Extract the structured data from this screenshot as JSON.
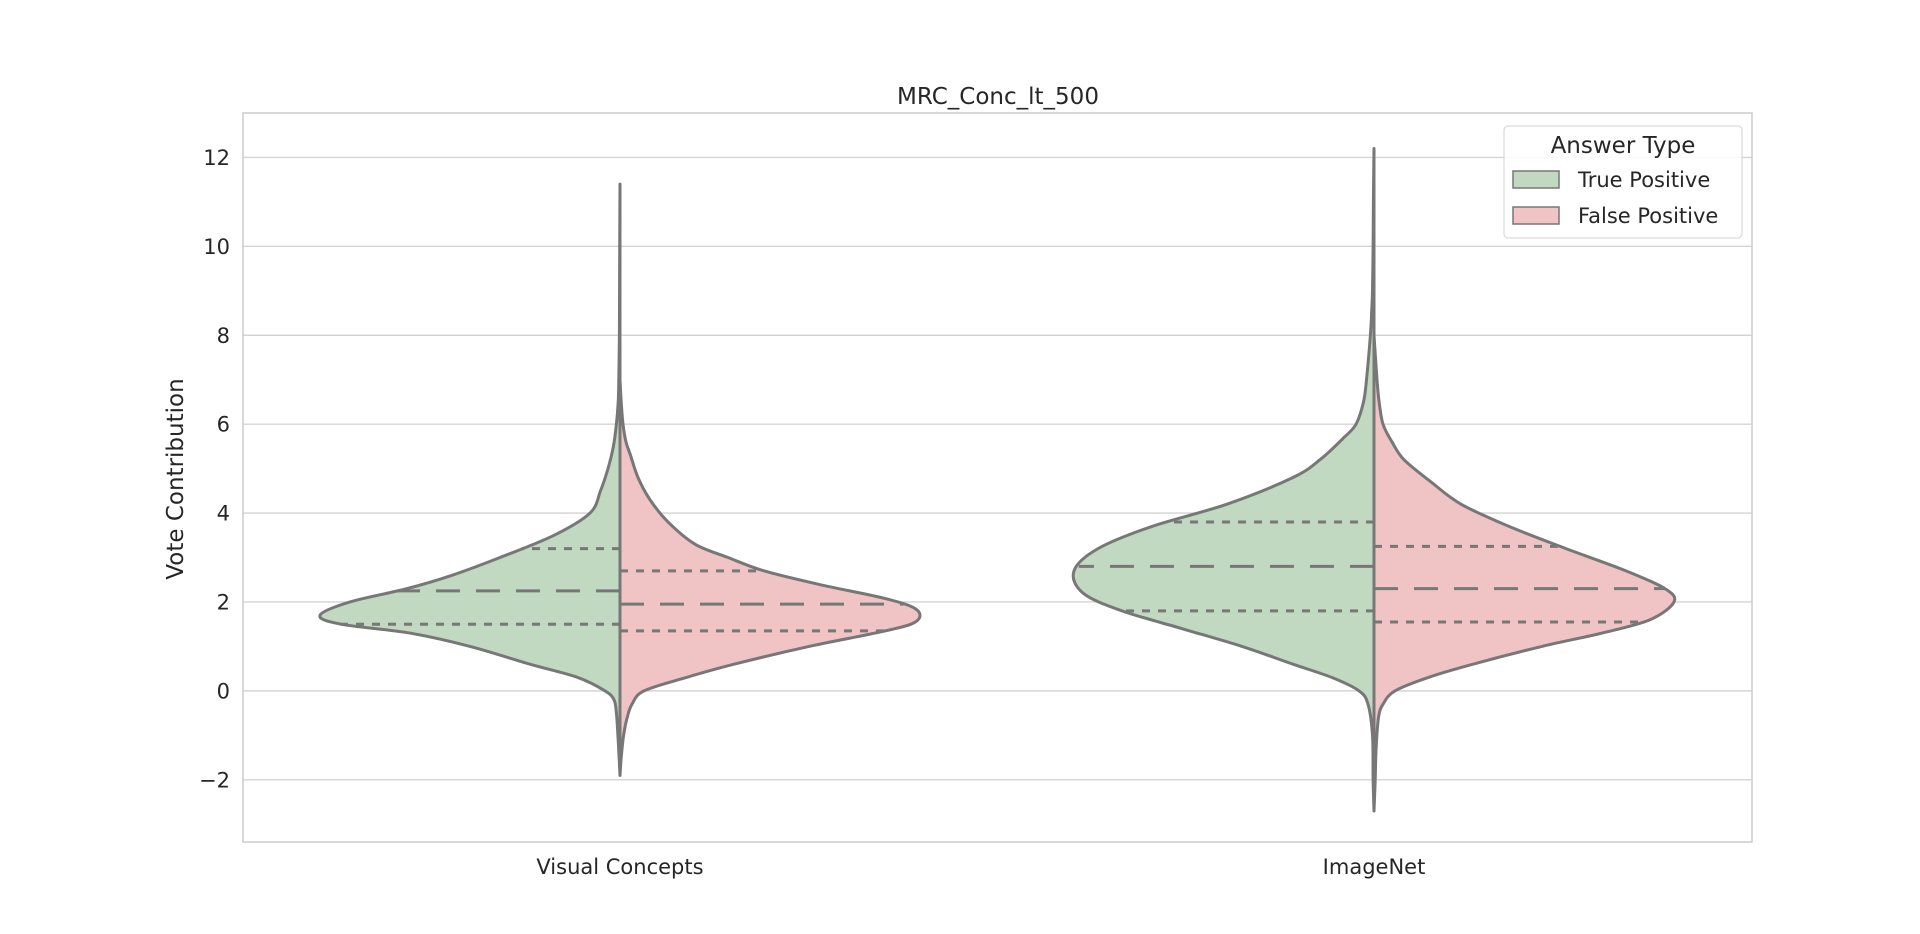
{
  "chart_data": {
    "type": "violin",
    "title": "MRC_Conc_lt_500",
    "xlabel": "",
    "ylabel": "Vote Contribution",
    "categories": [
      "Visual Concepts",
      "ImageNet"
    ],
    "ylim": [
      -3.4,
      13.0
    ],
    "yticks": [
      -2,
      0,
      2,
      4,
      6,
      8,
      10,
      12
    ],
    "ytick_labels": [
      "−2",
      "0",
      "2",
      "4",
      "6",
      "8",
      "10",
      "12"
    ],
    "grid": "horizontal",
    "legend": {
      "title": "Answer Type",
      "placement": "top-right"
    },
    "split": true,
    "inner": "quartile",
    "series": [
      {
        "name": "True Positive",
        "side": "left",
        "color": "#c0d9c0",
        "violins": [
          {
            "category": "Visual Concepts",
            "min": -1.9,
            "max": 11.4,
            "q1": 1.5,
            "median": 2.25,
            "q3": 3.2,
            "density": [
              [
                -1.9,
                0.0
              ],
              [
                -1.5,
                0.003
              ],
              [
                -1.0,
                0.007
              ],
              [
                -0.5,
                0.012
              ],
              [
                -0.2,
                0.02
              ],
              [
                0.0,
                0.05
              ],
              [
                0.3,
                0.14
              ],
              [
                0.6,
                0.3
              ],
              [
                1.0,
                0.5
              ],
              [
                1.3,
                0.7
              ],
              [
                1.5,
                0.93
              ],
              [
                1.7,
                1.0
              ],
              [
                2.0,
                0.9
              ],
              [
                2.3,
                0.71
              ],
              [
                2.6,
                0.56
              ],
              [
                3.0,
                0.4
              ],
              [
                3.5,
                0.22
              ],
              [
                4.0,
                0.1
              ],
              [
                4.5,
                0.065
              ],
              [
                5.0,
                0.04
              ],
              [
                5.5,
                0.022
              ],
              [
                6.0,
                0.012
              ],
              [
                6.5,
                0.006
              ],
              [
                7.0,
                0.004
              ],
              [
                8.0,
                0.002
              ],
              [
                9.0,
                0.0015
              ],
              [
                10.0,
                0.001
              ],
              [
                11.4,
                0.0
              ]
            ]
          },
          {
            "category": "ImageNet",
            "min": -2.7,
            "max": 12.2,
            "q1": 1.8,
            "median": 2.8,
            "q3": 3.8,
            "density": [
              [
                -2.7,
                0.0
              ],
              [
                -2.0,
                0.003
              ],
              [
                -1.0,
                0.005
              ],
              [
                -0.3,
                0.02
              ],
              [
                0.0,
                0.05
              ],
              [
                0.3,
                0.14
              ],
              [
                0.6,
                0.27
              ],
              [
                1.0,
                0.44
              ],
              [
                1.4,
                0.64
              ],
              [
                1.8,
                0.84
              ],
              [
                2.2,
                0.97
              ],
              [
                2.7,
                1.0
              ],
              [
                3.2,
                0.92
              ],
              [
                3.7,
                0.74
              ],
              [
                4.2,
                0.49
              ],
              [
                4.8,
                0.27
              ],
              [
                5.2,
                0.18
              ],
              [
                5.7,
                0.1
              ],
              [
                6.0,
                0.06
              ],
              [
                6.5,
                0.035
              ],
              [
                7.0,
                0.025
              ],
              [
                8.0,
                0.012
              ],
              [
                8.5,
                0.008
              ],
              [
                9.0,
                0.005
              ],
              [
                10.0,
                0.003
              ],
              [
                11.0,
                0.002
              ],
              [
                12.2,
                0.0
              ]
            ]
          }
        ]
      },
      {
        "name": "False Positive",
        "side": "right",
        "color": "#f0c4c4",
        "violins": [
          {
            "category": "Visual Concepts",
            "min": -1.9,
            "max": 7.0,
            "q1": 1.35,
            "median": 1.95,
            "q3": 2.7,
            "density": [
              [
                -1.9,
                0.0
              ],
              [
                -1.5,
                0.004
              ],
              [
                -1.0,
                0.012
              ],
              [
                -0.6,
                0.024
              ],
              [
                -0.3,
                0.04
              ],
              [
                0.0,
                0.08
              ],
              [
                0.3,
                0.22
              ],
              [
                0.6,
                0.38
              ],
              [
                1.0,
                0.63
              ],
              [
                1.3,
                0.85
              ],
              [
                1.5,
                0.97
              ],
              [
                1.7,
                1.0
              ],
              [
                1.9,
                0.97
              ],
              [
                2.1,
                0.87
              ],
              [
                2.4,
                0.66
              ],
              [
                2.7,
                0.48
              ],
              [
                3.0,
                0.36
              ],
              [
                3.3,
                0.25
              ],
              [
                3.8,
                0.16
              ],
              [
                4.3,
                0.1
              ],
              [
                4.8,
                0.06
              ],
              [
                5.3,
                0.035
              ],
              [
                5.6,
                0.02
              ],
              [
                6.0,
                0.01
              ],
              [
                6.5,
                0.004
              ],
              [
                7.0,
                0.0
              ]
            ]
          },
          {
            "category": "ImageNet",
            "min": -2.7,
            "max": 8.0,
            "q1": 1.55,
            "median": 2.3,
            "q3": 3.25,
            "density": [
              [
                -2.7,
                0.0
              ],
              [
                -2.0,
                0.004
              ],
              [
                -1.3,
                0.007
              ],
              [
                -0.6,
                0.015
              ],
              [
                -0.3,
                0.03
              ],
              [
                0.0,
                0.07
              ],
              [
                0.3,
                0.18
              ],
              [
                0.6,
                0.33
              ],
              [
                1.0,
                0.56
              ],
              [
                1.3,
                0.76
              ],
              [
                1.6,
                0.92
              ],
              [
                2.0,
                1.0
              ],
              [
                2.3,
                0.97
              ],
              [
                2.7,
                0.84
              ],
              [
                3.2,
                0.64
              ],
              [
                3.7,
                0.45
              ],
              [
                4.2,
                0.29
              ],
              [
                4.7,
                0.19
              ],
              [
                5.2,
                0.1
              ],
              [
                5.6,
                0.06
              ],
              [
                6.0,
                0.03
              ],
              [
                6.5,
                0.017
              ],
              [
                7.0,
                0.01
              ],
              [
                8.0,
                0.0
              ]
            ]
          }
        ]
      }
    ]
  }
}
